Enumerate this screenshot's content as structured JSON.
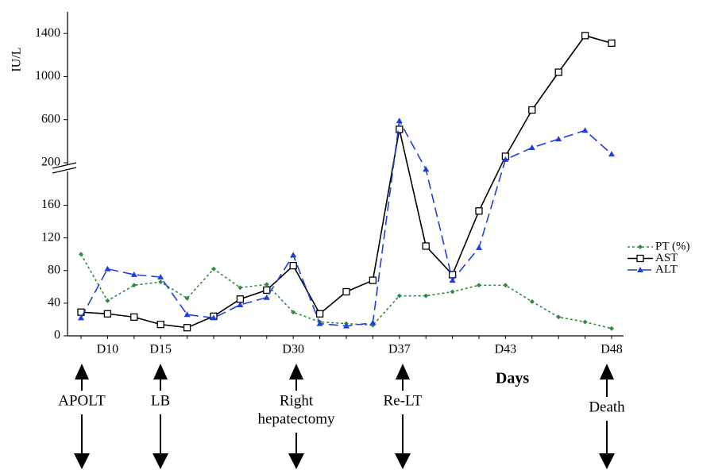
{
  "chart_data": {
    "type": "line",
    "y_label": "IU/L",
    "x_label": "Days",
    "categories": [
      null,
      "D10",
      null,
      "D15",
      null,
      null,
      null,
      null,
      "D30",
      null,
      null,
      null,
      "D37",
      null,
      null,
      null,
      "D43",
      null,
      null,
      null,
      "D48"
    ],
    "series": [
      {
        "name": "PT (%)",
        "color": "#2e8b3e",
        "line_style": "dotted",
        "marker": "diamond",
        "values": [
          100,
          43,
          62,
          66,
          46,
          82,
          59,
          63,
          29,
          17,
          15,
          13,
          49,
          49,
          54,
          62,
          62,
          42,
          23,
          17,
          9
        ]
      },
      {
        "name": "AST",
        "color": "#000000",
        "line_style": "solid",
        "marker": "square",
        "values": [
          29,
          27,
          23,
          14,
          10,
          24,
          45,
          56,
          86,
          27,
          54,
          68,
          510,
          110,
          75,
          153,
          260,
          690,
          1040,
          1380,
          1310
        ]
      },
      {
        "name": "ALT",
        "color": "#1f3fdc",
        "line_style": "dashed",
        "marker": "triangle",
        "values": [
          22,
          82,
          75,
          72,
          26,
          22,
          38,
          47,
          99,
          15,
          12,
          16,
          590,
          195,
          68,
          108,
          230,
          340,
          420,
          500,
          280
        ]
      }
    ],
    "ylim": [
      0,
      1600
    ],
    "ybreak": [
      180,
      200
    ],
    "yticks": [
      0,
      40,
      80,
      120,
      160,
      200,
      600,
      1000,
      1400
    ],
    "legend": "right",
    "events": [
      [
        "APOLT"
      ],
      [
        "LB"
      ],
      [
        "Right",
        "hepatectomy"
      ],
      [
        "Re-LT"
      ],
      [
        "Death"
      ]
    ]
  }
}
